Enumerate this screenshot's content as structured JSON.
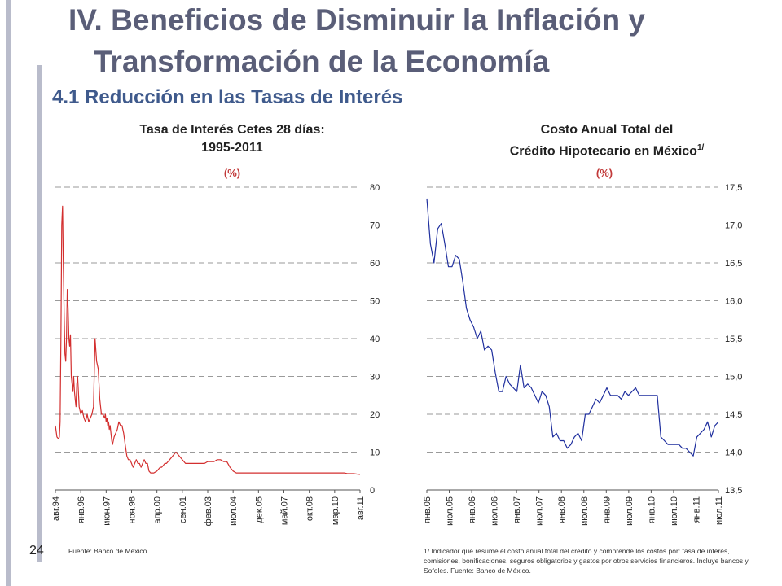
{
  "title_line1": "IV. Beneficios de Disminuir la Inflación y",
  "title_line2": "Transformación de la Economía",
  "subtitle": "4.1 Reducción en las Tasas de Interés",
  "page_number": "24",
  "colors": {
    "title": "#5a5e78",
    "subtitle": "#3f5a8c",
    "line_left": "#d32f2f",
    "line_right": "#1f2f9e",
    "unit": "#c23a3a",
    "sidebar": "#b9bccb"
  },
  "chart_data": [
    {
      "type": "line",
      "title_line1": "Tasa de Interés Cetes 28 días:",
      "title_line2": "1995-2011",
      "unit": "(%)",
      "ylim": [
        0,
        80
      ],
      "yticks": [
        "0",
        "10",
        "20",
        "30",
        "40",
        "50",
        "60",
        "70",
        "80"
      ],
      "xticks": [
        "авг.94",
        "янв.96",
        "июн.97",
        "ноя.98",
        "апр.00",
        "сен.01",
        "фев.03",
        "июл.04",
        "дек.05",
        "май.07",
        "окт.08",
        "мар.10",
        "авг.11"
      ],
      "grid": true,
      "source": "Fuente: Banco de México.",
      "series": [
        {
          "x": [
            0,
            2,
            4,
            5,
            6,
            7,
            8,
            9,
            10,
            11,
            12,
            13,
            14,
            15,
            16,
            17,
            18,
            19,
            20,
            21,
            22,
            23,
            24,
            25,
            26,
            27,
            28,
            30,
            32,
            34,
            36,
            38,
            40,
            42,
            44,
            46,
            48,
            50,
            52,
            54,
            56,
            58,
            60,
            62,
            63,
            64,
            65,
            66,
            67,
            68,
            69,
            70,
            71,
            72,
            74,
            76,
            78,
            80,
            82,
            84,
            86,
            88,
            90,
            92,
            94,
            96,
            98,
            100,
            102,
            104,
            106,
            108,
            110,
            112,
            114,
            116,
            118,
            120,
            124,
            128,
            132,
            134,
            136,
            138,
            140,
            142,
            144,
            146,
            148,
            150,
            152,
            154,
            156,
            160,
            164,
            168,
            172,
            174,
            176,
            178,
            180,
            184,
            188,
            192,
            196,
            200,
            204,
            208,
            212,
            216,
            220,
            224,
            228,
            232,
            236,
            240,
            244,
            248,
            252,
            256,
            260,
            264,
            268,
            272,
            276,
            280,
            284,
            288,
            292,
            296,
            300,
            304,
            308,
            312,
            316,
            320,
            324,
            328,
            332,
            336,
            340,
            344,
            348,
            352,
            356,
            360,
            364,
            368,
            372,
            376,
            380,
            384
          ],
          "y": [
            17,
            14,
            13.5,
            14,
            18,
            40,
            70,
            75,
            60,
            47,
            36,
            34,
            40,
            53,
            48,
            40,
            38,
            41,
            30,
            28,
            26,
            30,
            26,
            24,
            22,
            28,
            30,
            22,
            20,
            21,
            19,
            18,
            20,
            18,
            19,
            20,
            22,
            40,
            34,
            32,
            24,
            20,
            20,
            19,
            20,
            18,
            19,
            17,
            18,
            16,
            17,
            15,
            13,
            12,
            14,
            15,
            16,
            18,
            17,
            17,
            15,
            12,
            9,
            8,
            8,
            7,
            6,
            7,
            8,
            7,
            7,
            6,
            7,
            8,
            7,
            7,
            5,
            4.5,
            4.5,
            5,
            6,
            6,
            6.5,
            7,
            7,
            7.5,
            8,
            8.5,
            9,
            9.5,
            10,
            9.5,
            9,
            8,
            7,
            7,
            7,
            7,
            7,
            7,
            7,
            7,
            7,
            7.5,
            7.5,
            7.5,
            8,
            8,
            7.5,
            7.5,
            6,
            5,
            4.5,
            4.5,
            4.5,
            4.5,
            4.5,
            4.5,
            4.5,
            4.5,
            4.5,
            4.5,
            4.5,
            4.5,
            4.5,
            4.5,
            4.5,
            4.5,
            4.5,
            4.5,
            4.5,
            4.5,
            4.5,
            4.5,
            4.5,
            4.5,
            4.5,
            4.5,
            4.5,
            4.5,
            4.5,
            4.5,
            4.5,
            4.5,
            4.5,
            4.5,
            4.5,
            4.3,
            4.3,
            4.3,
            4.2,
            4.1
          ]
        }
      ]
    },
    {
      "type": "line",
      "title_line1": "Costo Anual Total del",
      "title_line2": "Crédito Hipotecario en México",
      "title_sup": "1/",
      "unit": "(%)",
      "ylim": [
        13.5,
        17.5
      ],
      "yticks": [
        "13,5",
        "14,0",
        "14,5",
        "15,0",
        "15,5",
        "16,0",
        "16,5",
        "17,0",
        "17,5"
      ],
      "xticks": [
        "янв.05",
        "июл.05",
        "янв.06",
        "июл.06",
        "янв.07",
        "июл.07",
        "янв.08",
        "июл.08",
        "янв.09",
        "июл.09",
        "янв.10",
        "июл.10",
        "янв.11",
        "июл.11"
      ],
      "grid": true,
      "footnote": "1/ Indicador que resume el costo anual total del crédito y comprende los costos por: tasa de interés, comisiones, bonificaciones, seguros obligatorios y gastos por otros servicios financieros. Incluye bancos y Sofoles. Fuente: Banco de México.",
      "series": [
        {
          "x": [
            0,
            1,
            2,
            3,
            4,
            5,
            6,
            7,
            8,
            9,
            10,
            11,
            12,
            13,
            14,
            15,
            16,
            17,
            18,
            19,
            20,
            21,
            22,
            23,
            24,
            25,
            26,
            27,
            28,
            29,
            30,
            31,
            32,
            33,
            34,
            35,
            36,
            37,
            38,
            39,
            40,
            41,
            42,
            43,
            44,
            45,
            46,
            47,
            48,
            49,
            50,
            51,
            52,
            53,
            54,
            55,
            56,
            57,
            58,
            59,
            60,
            61,
            62,
            63,
            64,
            65,
            66,
            67,
            68,
            69,
            70,
            71,
            72,
            73,
            74,
            75,
            76,
            77,
            78,
            79,
            80,
            81
          ],
          "y": [
            17.35,
            16.75,
            16.5,
            16.95,
            17.02,
            16.75,
            16.45,
            16.45,
            16.6,
            16.55,
            16.25,
            15.9,
            15.75,
            15.65,
            15.5,
            15.6,
            15.35,
            15.4,
            15.35,
            15.05,
            14.8,
            14.8,
            15.0,
            14.9,
            14.85,
            14.8,
            15.15,
            14.85,
            14.9,
            14.85,
            14.75,
            14.65,
            14.8,
            14.75,
            14.6,
            14.2,
            14.25,
            14.15,
            14.15,
            14.05,
            14.1,
            14.2,
            14.25,
            14.15,
            14.5,
            14.5,
            14.6,
            14.7,
            14.65,
            14.75,
            14.85,
            14.75,
            14.75,
            14.75,
            14.7,
            14.8,
            14.75,
            14.8,
            14.85,
            14.75,
            14.75,
            14.75,
            14.75,
            14.75,
            14.75,
            14.2,
            14.15,
            14.1,
            14.1,
            14.1,
            14.1,
            14.05,
            14.05,
            14.0,
            13.95,
            14.2,
            14.25,
            14.3,
            14.4,
            14.2,
            14.35,
            14.4
          ]
        }
      ]
    }
  ]
}
